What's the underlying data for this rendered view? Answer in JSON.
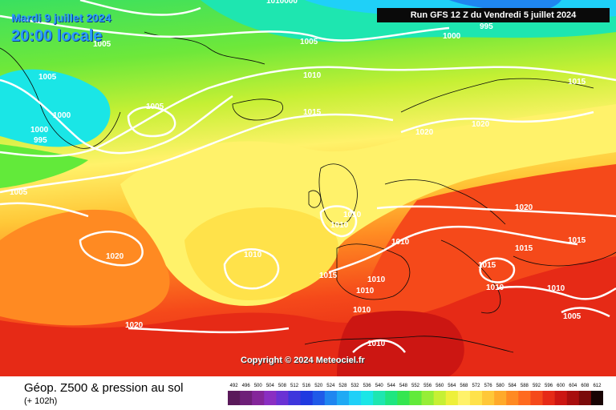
{
  "header": {
    "valid_date": "Mardi 9 juillet 2024",
    "local_time": "20:00 locale",
    "run": "Run GFS 12 Z du Vendredi 5 juillet 2024"
  },
  "footer": {
    "title": "Géop. Z500 & pression au sol",
    "lead_time": "(+ 102h)"
  },
  "copyright": "Copyright © 2024 Meteociel.fr",
  "legend": {
    "labels": [
      "492",
      "496",
      "500",
      "504",
      "508",
      "512",
      "516",
      "520",
      "524",
      "528",
      "532",
      "536",
      "540",
      "544",
      "548",
      "552",
      "556",
      "560",
      "564",
      "568",
      "572",
      "576",
      "580",
      "584",
      "588",
      "592",
      "596",
      "600",
      "604",
      "608",
      "612"
    ],
    "colors": [
      "#5a1a5a",
      "#6e1f78",
      "#84269a",
      "#8a2fc2",
      "#6a32d4",
      "#3e36dc",
      "#1f3ae0",
      "#1f5ae8",
      "#1f86f0",
      "#1faaf4",
      "#1fd0f8",
      "#1ae6e6",
      "#1ee6b0",
      "#1ee680",
      "#34e650",
      "#62ea3a",
      "#96ee36",
      "#c6f034",
      "#eef03a",
      "#fff26a",
      "#ffe24a",
      "#ffc838",
      "#ffaa2a",
      "#ff8a22",
      "#ff6a1e",
      "#f5491a",
      "#e62a16",
      "#cc1612",
      "#a80e0e",
      "#7a0a0a",
      "#180404"
    ]
  },
  "isobars": [
    {
      "label": "1010000",
      "pos": "top"
    },
    {
      "label": "995"
    },
    {
      "label": "1000"
    },
    {
      "label": "1005"
    },
    {
      "label": "1005"
    },
    {
      "label": "1010"
    },
    {
      "label": "1015"
    },
    {
      "label": "1005"
    },
    {
      "label": "1000"
    },
    {
      "label": "1000"
    },
    {
      "label": "995"
    },
    {
      "label": "1005"
    },
    {
      "label": "1005"
    },
    {
      "label": "1015"
    },
    {
      "label": "1020"
    },
    {
      "label": "1020"
    },
    {
      "label": "1020"
    },
    {
      "label": "1010"
    },
    {
      "label": "1010"
    },
    {
      "label": "1010"
    },
    {
      "label": "1020"
    },
    {
      "label": "1010"
    },
    {
      "label": "1015"
    },
    {
      "label": "1015"
    },
    {
      "label": "1015"
    },
    {
      "label": "1015"
    },
    {
      "label": "1010"
    },
    {
      "label": "1010"
    },
    {
      "label": "1010"
    },
    {
      "label": "1020"
    },
    {
      "label": "1010"
    },
    {
      "label": "1010"
    },
    {
      "label": "1010"
    },
    {
      "label": "1005"
    }
  ]
}
